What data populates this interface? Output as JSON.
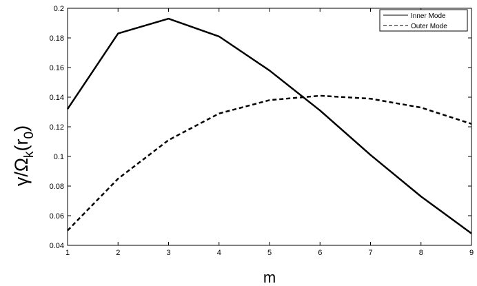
{
  "chart_data": {
    "type": "line",
    "title": "",
    "xlabel": "m",
    "ylabel": {
      "gamma": "γ",
      "slash": "/",
      "omega": "Ω",
      "sub_k": "k",
      "open": "(",
      "r": "r",
      "sub_0": "0",
      "close": ")"
    },
    "xlim": [
      1,
      9
    ],
    "ylim": [
      0.04,
      0.2
    ],
    "xticks": [
      1,
      2,
      3,
      4,
      5,
      6,
      7,
      8,
      9
    ],
    "yticks": [
      0.04,
      0.06,
      0.08,
      0.1,
      0.12,
      0.14,
      0.16,
      0.18,
      0.2
    ],
    "xtick_labels": [
      "1",
      "2",
      "3",
      "4",
      "5",
      "6",
      "7",
      "8",
      "9"
    ],
    "ytick_labels": [
      "0.04",
      "0.06",
      "0.08",
      "0.1",
      "0.12",
      "0.14",
      "0.16",
      "0.18",
      "0.2"
    ],
    "grid": false,
    "legend_position": "top-right",
    "x": [
      1,
      2,
      3,
      4,
      5,
      6,
      7,
      8,
      9
    ],
    "series": [
      {
        "name": "Inner Mode",
        "style": "solid",
        "color": "#000000",
        "values": [
          0.132,
          0.183,
          0.193,
          0.181,
          0.158,
          0.131,
          0.101,
          0.073,
          0.048
        ]
      },
      {
        "name": "Outer Mode",
        "style": "dashed",
        "color": "#000000",
        "values": [
          0.05,
          0.085,
          0.111,
          0.129,
          0.138,
          0.141,
          0.139,
          0.133,
          0.122
        ]
      }
    ]
  }
}
